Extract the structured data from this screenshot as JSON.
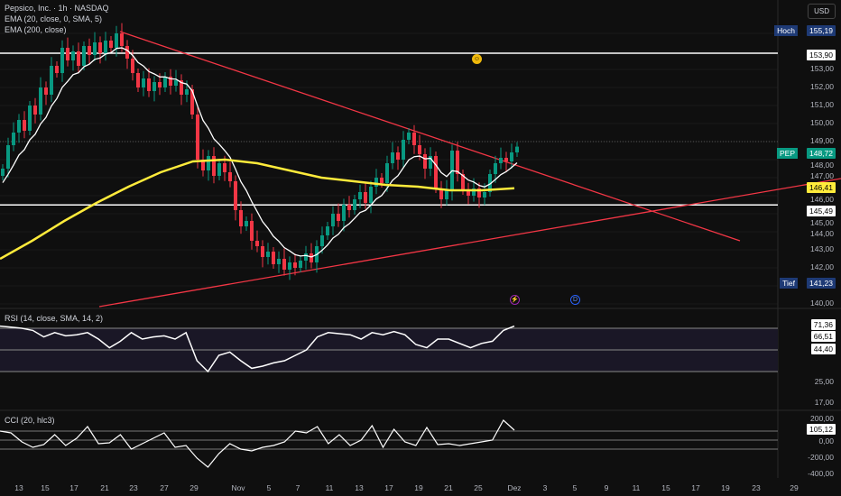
{
  "header": {
    "title": "Pepsico, Inc. · 1h · NASDAQ",
    "indicator1": "EMA (20, close, 0, SMA, 5)",
    "indicator2": "EMA (200, close)",
    "currency": "USD"
  },
  "price_axis": {
    "ticks": [
      "153,00",
      "152,00",
      "151,00",
      "150,00",
      "149,00",
      "148,00",
      "147,00",
      "146,00",
      "145,00",
      "144,00",
      "143,00",
      "142,00",
      "140,00"
    ],
    "high_label": "Hoch",
    "high_value": "155,19",
    "low_label": "Tief",
    "low_value": "141,23",
    "symbol": "PEP",
    "last_price": "148,72",
    "ema200_value": "146,41",
    "hline_upper": "153,90",
    "hline_lower": "145,49"
  },
  "rsi_pane": {
    "title": "RSI (14, close, SMA, 14, 2)",
    "values_labels": [
      "71,36",
      "66,51",
      "44,40"
    ],
    "ticks": [
      "25,00",
      "17,00"
    ]
  },
  "cci_pane": {
    "title": "CCI (20, hlc3)",
    "value_label": "105,12",
    "ticks": [
      "200,00",
      "0,00",
      "-200,00",
      "-400,00"
    ]
  },
  "x_axis": {
    "labels": [
      "13",
      "15",
      "17",
      "21",
      "23",
      "27",
      "29",
      "Nov",
      "5",
      "7",
      "11",
      "13",
      "17",
      "19",
      "21",
      "25",
      "Dez",
      "3",
      "5",
      "9",
      "11",
      "15",
      "17",
      "19",
      "23",
      "29"
    ]
  },
  "colors": {
    "up": "#089981",
    "down": "#f23645",
    "ema20": "#ffffff",
    "ema200": "#ffeb3b",
    "trendline": "#f23645",
    "background": "#0f0f0f"
  },
  "chart_data": {
    "type": "candlestick",
    "closes": [
      147.5,
      148.8,
      149.5,
      150.2,
      149.6,
      151,
      150.5,
      152,
      151.6,
      153.2,
      152.8,
      154.2,
      153.5,
      154,
      153.2,
      154.3,
      153.8,
      154.5,
      153.9,
      154.6,
      154.2,
      155,
      154.3,
      153.6,
      152.8,
      152,
      152.5,
      151.8,
      152.3,
      152,
      152.6,
      152.1,
      152.4,
      151.6,
      151.9,
      150.5,
      148,
      147.4,
      148.2,
      147.1,
      147.8,
      147.3,
      146.8,
      145.2,
      144.3,
      144.6,
      143.5,
      143.2,
      142.6,
      142.9,
      142.2,
      142.5,
      141.9,
      142.3,
      142,
      142.4,
      142.8,
      142.3,
      143.2,
      143.8,
      144.3,
      145,
      144.6,
      145.5,
      145.2,
      145.8,
      146.2,
      145.6,
      146.5,
      147,
      146.7,
      147.8,
      148.4,
      148,
      149.1,
      149.5,
      148.8,
      148.3,
      147.5,
      148.2,
      146.4,
      145.8,
      146.3,
      148.5,
      147.2,
      146.3,
      146,
      146.4,
      145.9,
      146.2,
      147.2,
      147.8,
      148.1,
      147.9,
      148.4,
      148.72
    ],
    "ema200": [
      142.5,
      143.5,
      144.6,
      145.6,
      146.5,
      147.3,
      147.9,
      148,
      147.8,
      147.4,
      147,
      146.8,
      146.6,
      146.5,
      146.3,
      146.3,
      146.41
    ],
    "hlines": [
      153.9,
      145.49
    ],
    "rsi": [
      72,
      71,
      70,
      68,
      62,
      66,
      63,
      64,
      66,
      60,
      52,
      58,
      66,
      60,
      62,
      63,
      60,
      66,
      40,
      30,
      45,
      48,
      40,
      33,
      35,
      38,
      40,
      45,
      50,
      62,
      66,
      65,
      64,
      60,
      66,
      64,
      67,
      64,
      55,
      52,
      60,
      60,
      56,
      52,
      56,
      58,
      68,
      72
    ],
    "rsi_levels": [
      70,
      50,
      30
    ],
    "cci": [
      100,
      80,
      -20,
      -80,
      -50,
      60,
      -60,
      20,
      150,
      -40,
      -30,
      60,
      -100,
      -40,
      20,
      80,
      -80,
      -60,
      -200,
      -300,
      -150,
      -40,
      -100,
      -120,
      -80,
      -60,
      -20,
      100,
      80,
      150,
      -40,
      60,
      -60,
      0,
      160,
      -80,
      120,
      -20,
      -60,
      140,
      -50,
      -40,
      -60,
      -40,
      -20,
      0,
      220,
      110
    ],
    "cci_levels": [
      100,
      0,
      -100
    ]
  }
}
